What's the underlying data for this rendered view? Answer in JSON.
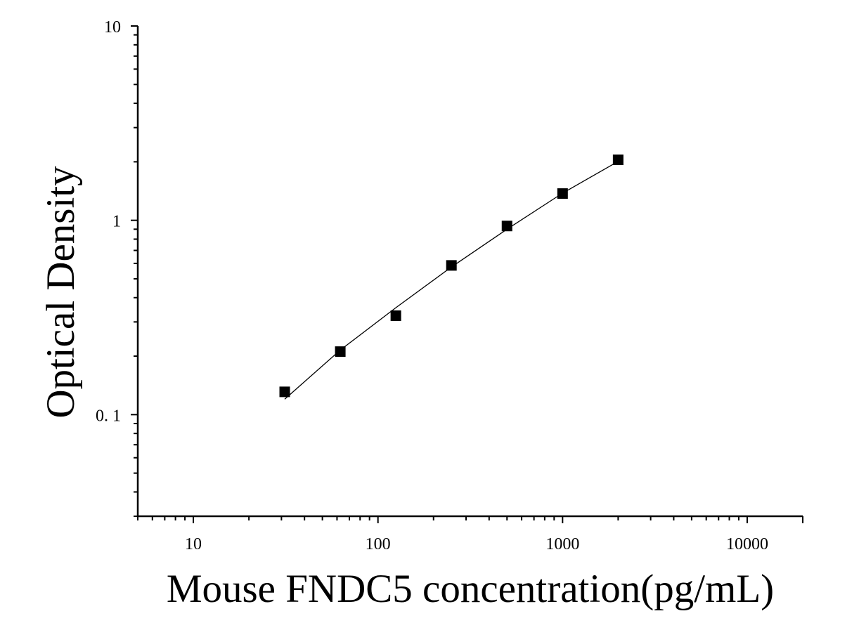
{
  "chart_data": {
    "type": "scatter",
    "title": "",
    "xlabel": "Mouse FNDC5 concentration(pg/mL)",
    "ylabel": "Optical Density",
    "x_scale": "log",
    "y_scale": "log",
    "xlim": [
      5,
      20000
    ],
    "ylim": [
      0.03,
      10
    ],
    "x_tick_labels": [
      {
        "value": 10,
        "label": "10"
      },
      {
        "value": 100,
        "label": "100"
      },
      {
        "value": 1000,
        "label": "1000"
      },
      {
        "value": 10000,
        "label": "10000"
      }
    ],
    "y_tick_labels": [
      {
        "value": 0.1,
        "label": "0. 1"
      },
      {
        "value": 1,
        "label": "1"
      },
      {
        "value": 10,
        "label": "10"
      }
    ],
    "grid": false,
    "legend": "none",
    "series": [
      {
        "marker": "square",
        "color": "#000000",
        "points": [
          {
            "x": 31.25,
            "y": 0.131
          },
          {
            "x": 62.5,
            "y": 0.211
          },
          {
            "x": 125,
            "y": 0.323
          },
          {
            "x": 250,
            "y": 0.586
          },
          {
            "x": 500,
            "y": 0.935
          },
          {
            "x": 1000,
            "y": 1.373
          },
          {
            "x": 2000,
            "y": 2.048
          }
        ]
      }
    ],
    "fit_curve": {
      "color": "#000000",
      "points": [
        {
          "x": 31.25,
          "y": 0.12
        },
        {
          "x": 62.5,
          "y": 0.215
        },
        {
          "x": 125,
          "y": 0.355
        },
        {
          "x": 250,
          "y": 0.575
        },
        {
          "x": 500,
          "y": 0.9
        },
        {
          "x": 1000,
          "y": 1.38
        },
        {
          "x": 2000,
          "y": 2.01
        }
      ]
    }
  }
}
